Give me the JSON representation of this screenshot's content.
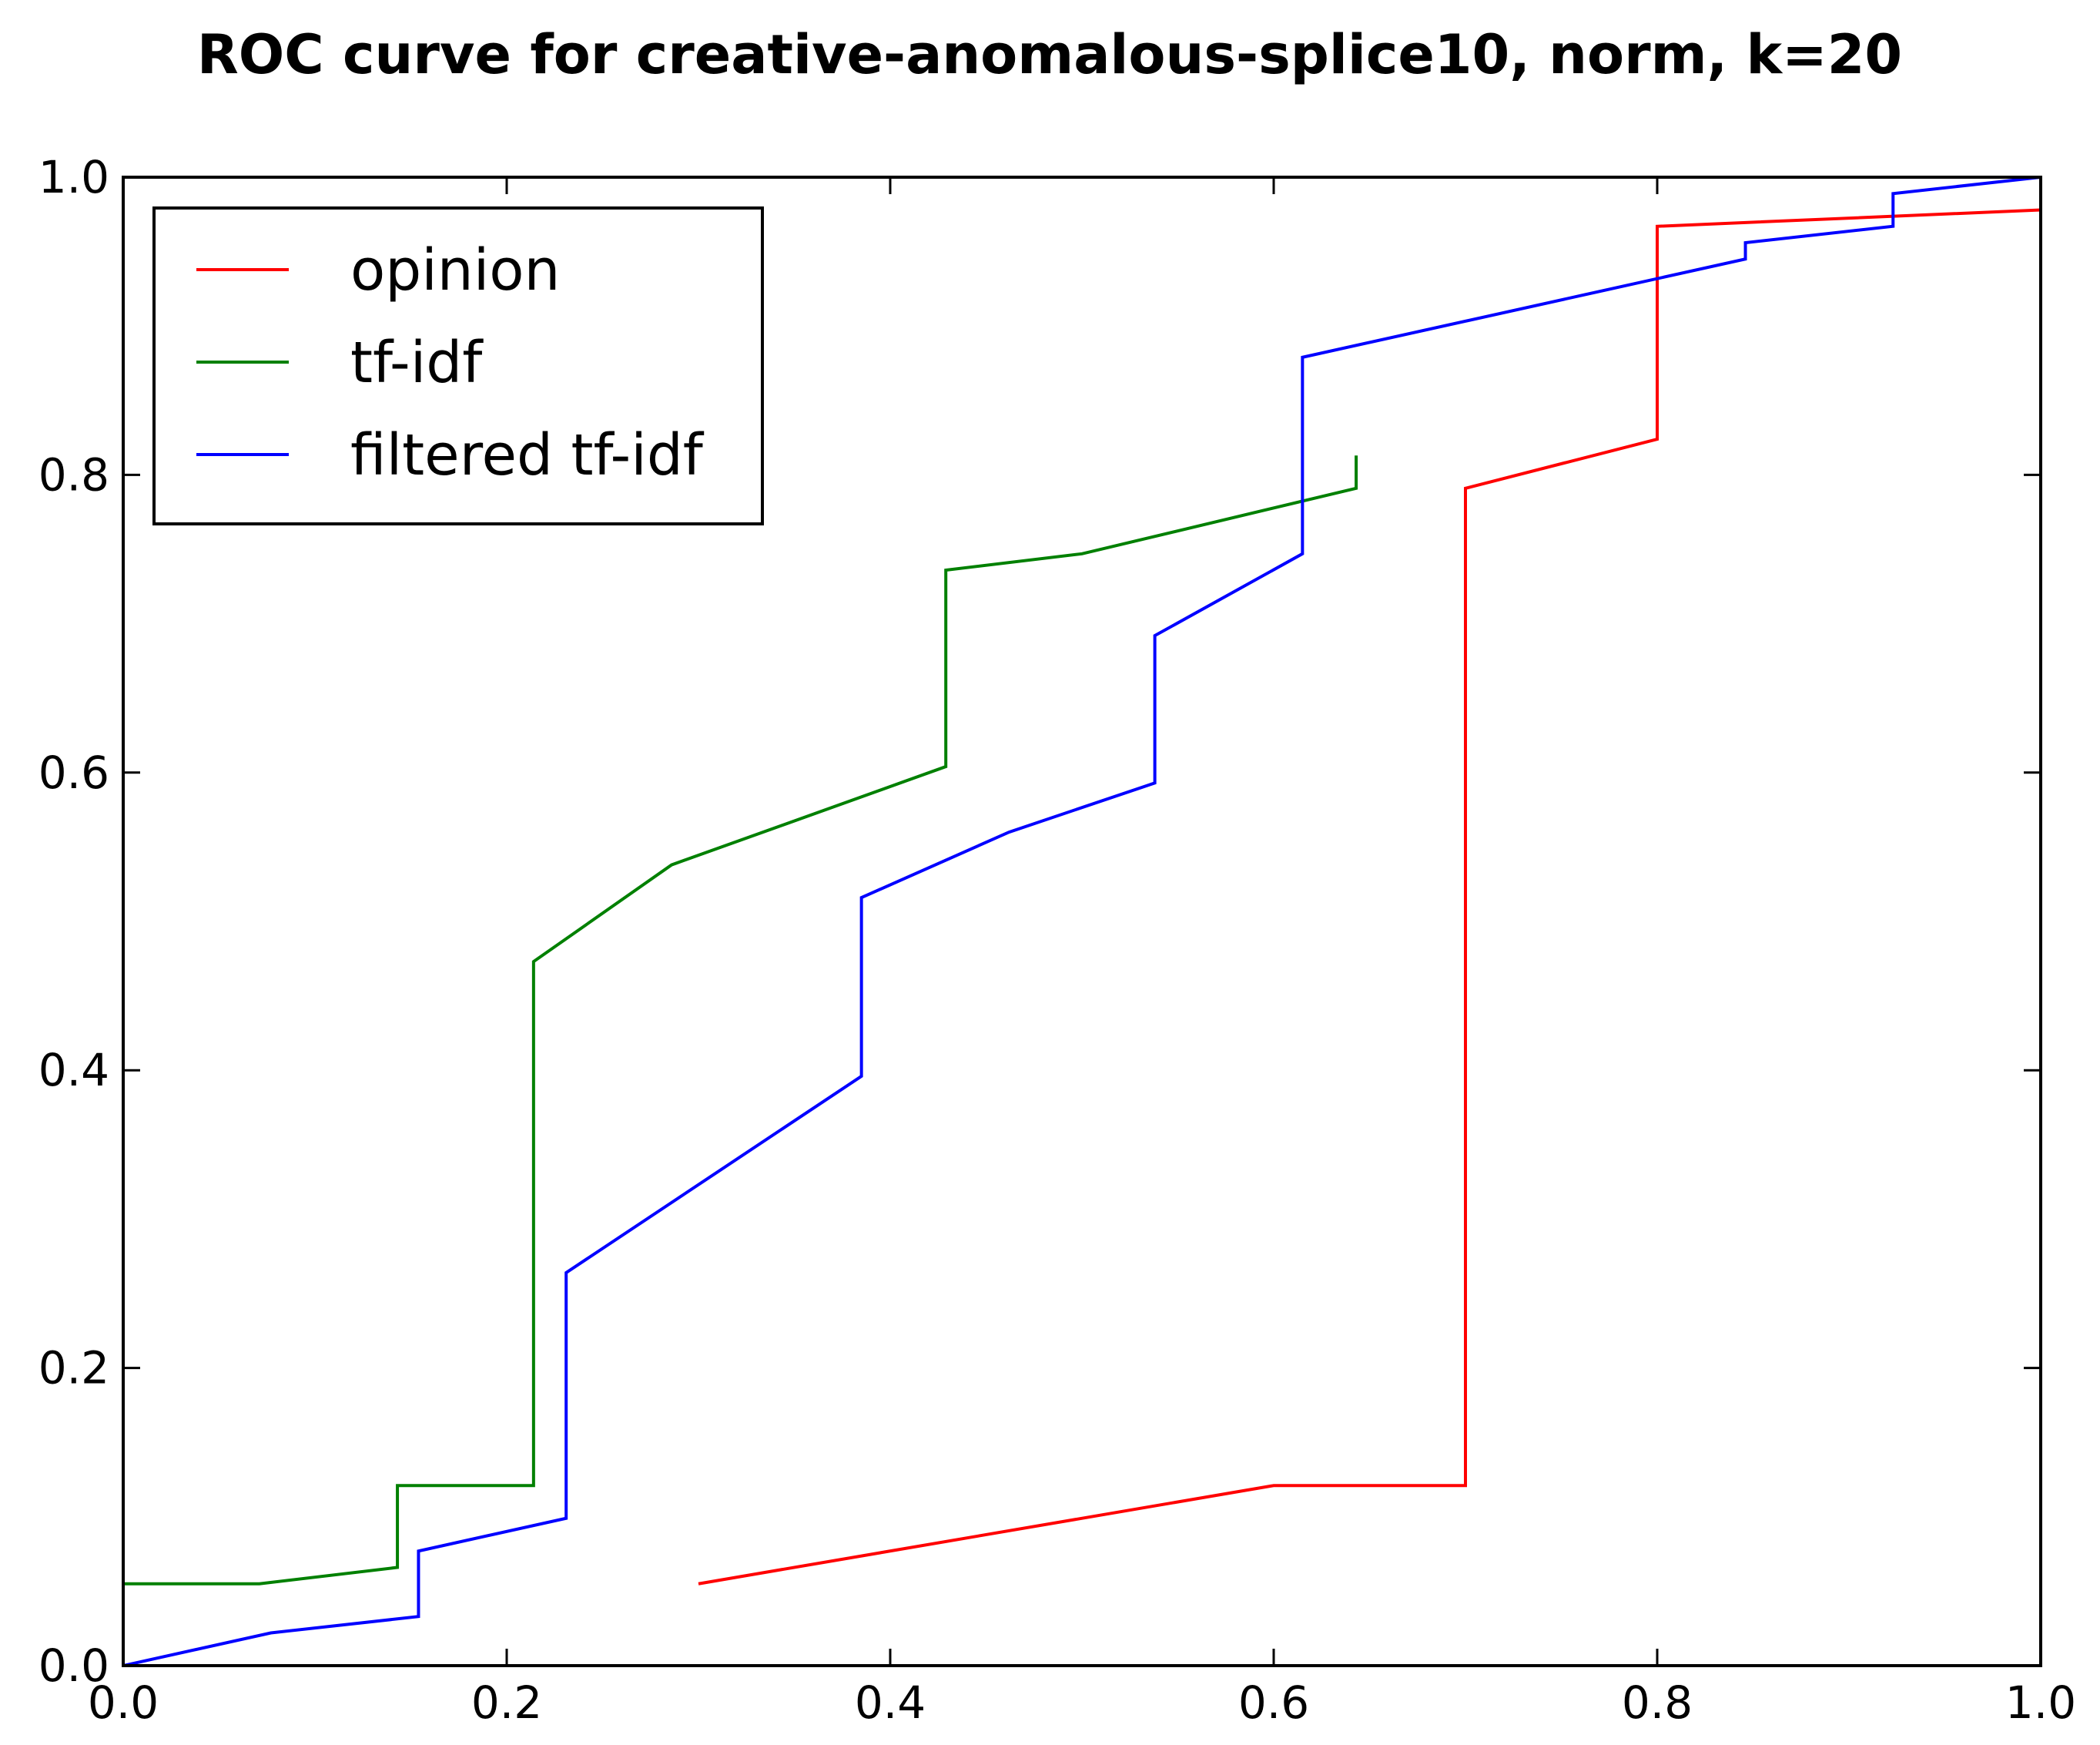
{
  "chart_data": {
    "type": "line",
    "title": "ROC curve for creative-anomalous-splice10, norm, k=20",
    "xlabel": "",
    "ylabel": "",
    "xlim": [
      0.0,
      1.0
    ],
    "ylim": [
      0.0,
      1.0
    ],
    "xticks": [
      0.0,
      0.2,
      0.4,
      0.6,
      0.8,
      1.0
    ],
    "yticks": [
      0.0,
      0.2,
      0.4,
      0.6,
      0.8,
      1.0
    ],
    "xtick_labels": [
      "0.0",
      "0.2",
      "0.4",
      "0.6",
      "0.8",
      "1.0"
    ],
    "ytick_labels": [
      "0.0",
      "0.2",
      "0.4",
      "0.6",
      "0.8",
      "1.0"
    ],
    "grid": false,
    "legend_position": "top-left",
    "series": [
      {
        "name": "opinion",
        "color": "#ff0000",
        "x": [
          0.3,
          0.6,
          0.7,
          0.7,
          0.8,
          0.8,
          1.0
        ],
        "y": [
          0.055,
          0.121,
          0.121,
          0.791,
          0.824,
          0.967,
          0.978
        ]
      },
      {
        "name": "tf-idf",
        "color": "#008000",
        "x": [
          0.0,
          0.071,
          0.143,
          0.143,
          0.214,
          0.214,
          0.286,
          0.429,
          0.429,
          0.5,
          0.643,
          0.643
        ],
        "y": [
          0.055,
          0.055,
          0.066,
          0.121,
          0.121,
          0.473,
          0.538,
          0.604,
          0.736,
          0.747,
          0.791,
          0.813
        ]
      },
      {
        "name": "filtered tf-idf",
        "color": "#0000ff",
        "x": [
          0.0,
          0.077,
          0.154,
          0.154,
          0.231,
          0.231,
          0.385,
          0.385,
          0.462,
          0.538,
          0.538,
          0.615,
          0.615,
          0.846,
          0.846,
          0.923,
          0.923,
          1.0
        ],
        "y": [
          0.0,
          0.022,
          0.033,
          0.077,
          0.099,
          0.264,
          0.396,
          0.516,
          0.56,
          0.593,
          0.692,
          0.747,
          0.879,
          0.945,
          0.956,
          0.967,
          0.989,
          1.0
        ]
      }
    ]
  }
}
